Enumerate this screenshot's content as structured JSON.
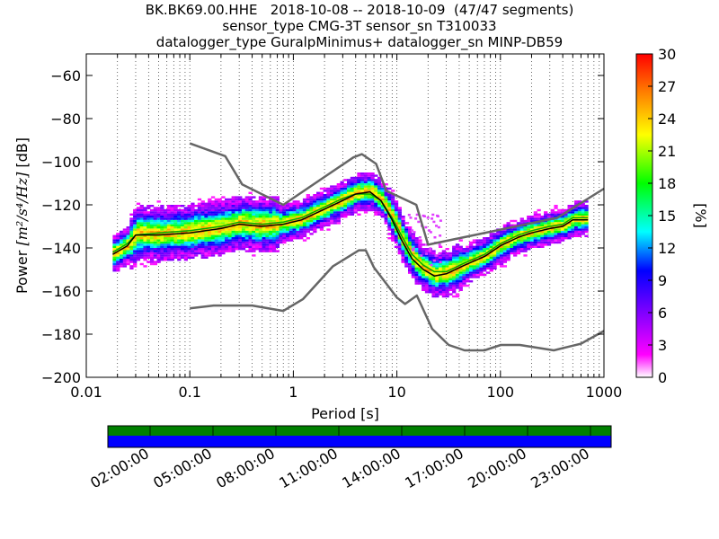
{
  "chart_data": {
    "type": "heatmap",
    "title_lines": [
      "BK.BK69.00.HHE   2018-10-08 -- 2018-10-09  (47/47 segments)",
      "sensor_type CMG-3T sensor_sn T310033",
      "datalogger_type GuralpMinimus+ datalogger_sn MINP-DB59"
    ],
    "xlabel": "Period [s]",
    "ylabel_prefix": "Power ",
    "ylabel_units": "[m²/s⁴/Hz]",
    "ylabel_suffix": " [dB]",
    "x_scale": "log",
    "xlim": [
      0.01,
      1000
    ],
    "ylim": [
      -200,
      -50
    ],
    "x_ticks": [
      0.01,
      0.1,
      1,
      10,
      100,
      1000
    ],
    "x_tick_labels": [
      "0.01",
      "0.1",
      "1",
      "10",
      "100",
      "1000"
    ],
    "y_ticks": [
      -200,
      -180,
      -160,
      -140,
      -120,
      -100,
      -80,
      -60
    ],
    "y_tick_labels": [
      "−200",
      "−180",
      "−160",
      "−140",
      "−120",
      "−100",
      "−80",
      "−60"
    ],
    "grid": "dotted vertical lines at every log-decade subdivision",
    "colorbar": {
      "label": "[%]",
      "range": [
        0,
        30
      ],
      "ticks": [
        0,
        3,
        6,
        9,
        12,
        15,
        18,
        21,
        24,
        27,
        30
      ],
      "tick_labels": [
        "0",
        "3",
        "6",
        "9",
        "12",
        "15",
        "18",
        "21",
        "24",
        "27",
        "30"
      ],
      "colormap": "pqlx (white → magenta → blue → cyan → green → yellow → red)"
    },
    "noise_models": {
      "NHNM": [
        [
          0.1,
          -91.5
        ],
        [
          0.22,
          -97.4
        ],
        [
          0.32,
          -110.5
        ],
        [
          0.8,
          -120.0
        ],
        [
          3.8,
          -98.0
        ],
        [
          4.6,
          -96.5
        ],
        [
          6.3,
          -101.0
        ],
        [
          7.9,
          -113.5
        ],
        [
          15.4,
          -120.0
        ],
        [
          20.0,
          -138.5
        ],
        [
          354.8,
          -126.0
        ],
        [
          1000,
          -112.5
        ]
      ],
      "NLNM": [
        [
          0.1,
          -168.0
        ],
        [
          0.17,
          -166.7
        ],
        [
          0.4,
          -166.7
        ],
        [
          0.8,
          -169.2
        ],
        [
          1.24,
          -163.7
        ],
        [
          2.4,
          -148.6
        ],
        [
          4.3,
          -141.1
        ],
        [
          5.0,
          -141.1
        ],
        [
          6.0,
          -149.0
        ],
        [
          10.0,
          -163.0
        ],
        [
          12.0,
          -166.0
        ],
        [
          15.6,
          -162.1
        ],
        [
          21.9,
          -177.5
        ],
        [
          31.6,
          -185.0
        ],
        [
          45.0,
          -187.5
        ],
        [
          70.0,
          -187.5
        ],
        [
          101.0,
          -185.0
        ],
        [
          154.0,
          -185.0
        ],
        [
          328.0,
          -187.5
        ],
        [
          600.0,
          -184.4
        ],
        [
          1000,
          -178.5
        ]
      ]
    },
    "mode_curve": [
      [
        0.018,
        -143
      ],
      [
        0.025,
        -139
      ],
      [
        0.03,
        -134
      ],
      [
        0.05,
        -134
      ],
      [
        0.1,
        -133
      ],
      [
        0.2,
        -131
      ],
      [
        0.3,
        -129
      ],
      [
        0.5,
        -130
      ],
      [
        0.8,
        -129
      ],
      [
        1.2,
        -127
      ],
      [
        2.0,
        -122
      ],
      [
        3.0,
        -118
      ],
      [
        4.0,
        -115
      ],
      [
        5.5,
        -114
      ],
      [
        7.0,
        -118
      ],
      [
        9.0,
        -127
      ],
      [
        11.0,
        -136
      ],
      [
        14.0,
        -145
      ],
      [
        18.0,
        -150
      ],
      [
        23.0,
        -153
      ],
      [
        30.0,
        -152
      ],
      [
        45.0,
        -148
      ],
      [
        70.0,
        -144
      ],
      [
        100.0,
        -139
      ],
      [
        150.0,
        -135
      ],
      [
        200.0,
        -133
      ],
      [
        300.0,
        -131
      ],
      [
        400.0,
        -130
      ],
      [
        500.0,
        -127
      ],
      [
        700.0,
        -127
      ]
    ],
    "mean_curve": [
      [
        0.018,
        -142
      ],
      [
        0.025,
        -138
      ],
      [
        0.03,
        -134
      ],
      [
        0.05,
        -133
      ],
      [
        0.1,
        -132
      ],
      [
        0.2,
        -130
      ],
      [
        0.3,
        -128
      ],
      [
        0.5,
        -129
      ],
      [
        0.8,
        -128
      ],
      [
        1.2,
        -126
      ],
      [
        2.0,
        -121
      ],
      [
        3.0,
        -117
      ],
      [
        4.0,
        -115
      ],
      [
        5.5,
        -115
      ],
      [
        7.0,
        -118
      ],
      [
        9.0,
        -126
      ],
      [
        11.0,
        -134
      ],
      [
        14.0,
        -143
      ],
      [
        18.0,
        -148
      ],
      [
        23.0,
        -151
      ],
      [
        30.0,
        -151
      ],
      [
        45.0,
        -147
      ],
      [
        70.0,
        -143
      ],
      [
        100.0,
        -138
      ],
      [
        150.0,
        -134
      ],
      [
        200.0,
        -132
      ],
      [
        300.0,
        -130
      ],
      [
        400.0,
        -129
      ],
      [
        500.0,
        -126
      ],
      [
        700.0,
        -126
      ]
    ],
    "timeline": {
      "tick_labels": [
        "02:00:00",
        "05:00:00",
        "08:00:00",
        "11:00:00",
        "14:00:00",
        "17:00:00",
        "20:00:00",
        "23:00:00"
      ],
      "top_bar_color": "#008000",
      "bottom_bar_color": "#0000ff"
    }
  },
  "colors": {
    "noise_model": "#666666",
    "mode": "#000000",
    "mean": "#00aa00"
  }
}
